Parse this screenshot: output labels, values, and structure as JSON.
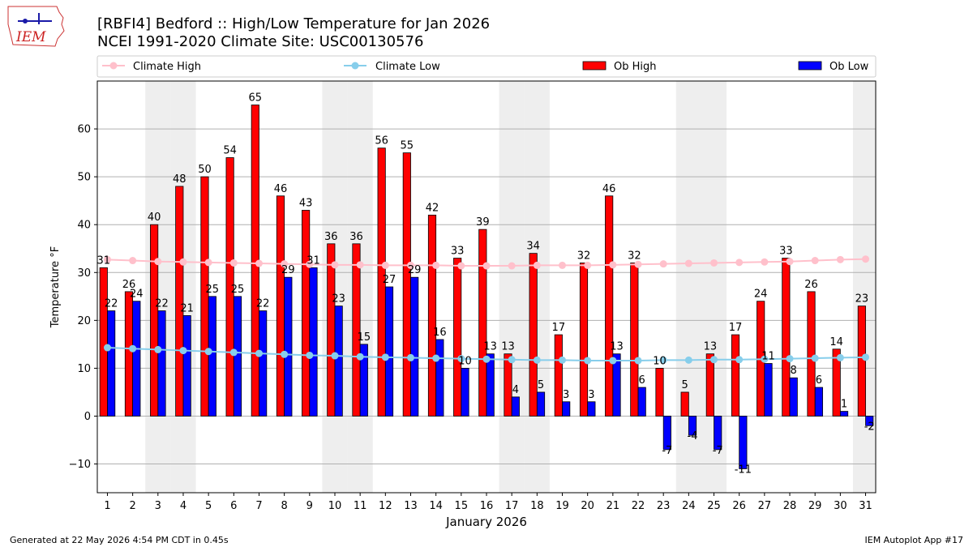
{
  "page": {
    "title_line1": "[RBFI4] Bedford :: High/Low Temperature for Jan 2026",
    "title_line2": "NCEI 1991-2020 Climate Site: USC00130576",
    "footer_left": "Generated at 22 May 2026 4:54 PM CDT in 0.45s",
    "footer_right": "IEM Autoplot App #17",
    "logo_text": "IEM"
  },
  "chart_data": {
    "type": "bar",
    "xlabel": "January 2026",
    "ylabel": "Temperature °F",
    "ylim": [
      -16,
      70
    ],
    "yticks": [
      -10,
      0,
      10,
      20,
      30,
      40,
      50,
      60
    ],
    "grid": "horizontal",
    "legend_position": "top",
    "categories": [
      "1",
      "2",
      "3",
      "4",
      "5",
      "6",
      "7",
      "8",
      "9",
      "10",
      "11",
      "12",
      "13",
      "14",
      "15",
      "16",
      "17",
      "18",
      "19",
      "20",
      "21",
      "22",
      "23",
      "24",
      "25",
      "26",
      "27",
      "28",
      "29",
      "30",
      "31"
    ],
    "weekend_shading_days": [
      3,
      4,
      10,
      11,
      17,
      18,
      24,
      25,
      31
    ],
    "series": [
      {
        "name": "Ob High",
        "kind": "bar",
        "color": "#ff0000",
        "values": [
          31,
          26,
          40,
          48,
          50,
          54,
          65,
          46,
          43,
          36,
          36,
          56,
          55,
          42,
          33,
          39,
          13,
          34,
          17,
          32,
          46,
          32,
          10,
          5,
          13,
          17,
          24,
          33,
          26,
          14,
          23
        ],
        "labels": [
          "31",
          "26",
          "40",
          "48",
          "50",
          "54",
          "65",
          "46",
          "43",
          "36",
          "36",
          "56",
          "55",
          "42",
          "33",
          "39",
          "13",
          "34",
          "17",
          "32",
          "46",
          "32",
          "10",
          "5",
          "13",
          "17",
          "24",
          "33",
          "26",
          "14",
          "23"
        ]
      },
      {
        "name": "Ob Low",
        "kind": "bar",
        "color": "#0000ff",
        "values": [
          22,
          24,
          22,
          21,
          25,
          25,
          22,
          29,
          31,
          23,
          15,
          27,
          29,
          16,
          10,
          13,
          4,
          5,
          3,
          3,
          13,
          6,
          -7,
          -4,
          -7,
          -11,
          11,
          8,
          6,
          1,
          -2
        ],
        "labels": [
          "22",
          "24",
          "22",
          "21",
          "25",
          "25",
          "22",
          "29",
          "31",
          "23",
          "15",
          "27",
          "29",
          "16",
          "10",
          "13",
          "4",
          "5",
          "3",
          "3",
          "13",
          "6",
          "-7",
          "-4",
          "-7",
          "-11",
          "11",
          "8",
          "6",
          "1",
          "-2"
        ]
      },
      {
        "name": "Climate High",
        "kind": "line",
        "color": "#ffc0cb",
        "values": [
          32.7,
          32.5,
          32.3,
          32.2,
          32.1,
          32.0,
          31.9,
          31.8,
          31.7,
          31.6,
          31.6,
          31.5,
          31.5,
          31.5,
          31.4,
          31.4,
          31.4,
          31.5,
          31.5,
          31.5,
          31.6,
          31.7,
          31.8,
          31.9,
          32.0,
          32.1,
          32.2,
          32.3,
          32.5,
          32.7,
          32.8
        ]
      },
      {
        "name": "Climate Low",
        "kind": "line",
        "color": "#87ceeb",
        "values": [
          14.3,
          14.1,
          13.9,
          13.7,
          13.5,
          13.3,
          13.1,
          12.9,
          12.7,
          12.6,
          12.4,
          12.3,
          12.2,
          12.1,
          12.0,
          11.9,
          11.8,
          11.7,
          11.7,
          11.6,
          11.6,
          11.6,
          11.7,
          11.7,
          11.8,
          11.8,
          11.9,
          12.0,
          12.1,
          12.2,
          12.3
        ]
      }
    ]
  }
}
